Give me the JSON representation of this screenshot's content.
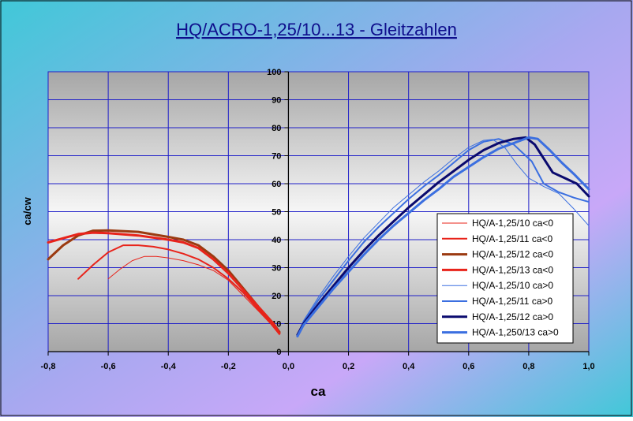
{
  "chart_data": {
    "type": "line",
    "title": "HQ/ACRO-1,25/10...13 - Gleitzahlen",
    "xlabel": "ca",
    "ylabel": "ca/cw",
    "xlim": [
      -0.8,
      1.0
    ],
    "ylim": [
      0,
      100
    ],
    "x_ticks": [
      "-0,8",
      "-0,6",
      "-0,4",
      "-0,2",
      "0,0",
      "0,2",
      "0,4",
      "0,6",
      "0,8",
      "1,0"
    ],
    "y_ticks": [
      "0",
      "10",
      "20",
      "30",
      "40",
      "50",
      "60",
      "70",
      "80",
      "90",
      "100"
    ],
    "grid": true,
    "legend_position": "bottom-right",
    "series": [
      {
        "name": "HQ/A-1,25/10 ca<0",
        "color": "#e8231a",
        "width": 1,
        "points": [
          [
            -0.6,
            26
          ],
          [
            -0.56,
            29.5
          ],
          [
            -0.52,
            32.5
          ],
          [
            -0.48,
            34
          ],
          [
            -0.44,
            34
          ],
          [
            -0.4,
            33.5
          ],
          [
            -0.35,
            32.5
          ],
          [
            -0.3,
            31
          ],
          [
            -0.25,
            29
          ],
          [
            -0.2,
            25.5
          ],
          [
            -0.15,
            20
          ],
          [
            -0.1,
            14.5
          ],
          [
            -0.06,
            10
          ],
          [
            -0.03,
            6
          ]
        ]
      },
      {
        "name": "HQ/A-1,25/11 ca<0",
        "color": "#e8231a",
        "width": 2,
        "points": [
          [
            -0.7,
            26
          ],
          [
            -0.65,
            31
          ],
          [
            -0.6,
            35.5
          ],
          [
            -0.55,
            38
          ],
          [
            -0.5,
            38
          ],
          [
            -0.45,
            37.5
          ],
          [
            -0.4,
            36.5
          ],
          [
            -0.35,
            35
          ],
          [
            -0.3,
            33
          ],
          [
            -0.25,
            30
          ],
          [
            -0.2,
            26
          ],
          [
            -0.15,
            21
          ],
          [
            -0.1,
            15
          ],
          [
            -0.06,
            10.5
          ],
          [
            -0.03,
            6.5
          ]
        ]
      },
      {
        "name": "HQ/A-1,25/12 ca<0",
        "color": "#9b3a10",
        "width": 3,
        "points": [
          [
            -0.8,
            33
          ],
          [
            -0.75,
            38
          ],
          [
            -0.7,
            41.5
          ],
          [
            -0.65,
            43.2
          ],
          [
            -0.6,
            43.3
          ],
          [
            -0.5,
            42.8
          ],
          [
            -0.4,
            41
          ],
          [
            -0.35,
            40
          ],
          [
            -0.3,
            38
          ],
          [
            -0.25,
            34
          ],
          [
            -0.2,
            29
          ],
          [
            -0.15,
            22.5
          ],
          [
            -0.1,
            16
          ],
          [
            -0.05,
            10
          ],
          [
            -0.03,
            7
          ]
        ]
      },
      {
        "name": "HQ/A-1,25/13 ca<0",
        "color": "#e8231a",
        "width": 3,
        "points": [
          [
            -0.8,
            39
          ],
          [
            -0.75,
            40.5
          ],
          [
            -0.7,
            42
          ],
          [
            -0.65,
            42.5
          ],
          [
            -0.6,
            42.3
          ],
          [
            -0.5,
            41.5
          ],
          [
            -0.4,
            40
          ],
          [
            -0.35,
            39
          ],
          [
            -0.3,
            37
          ],
          [
            -0.25,
            33
          ],
          [
            -0.2,
            28
          ],
          [
            -0.15,
            22
          ],
          [
            -0.1,
            16
          ],
          [
            -0.05,
            10
          ],
          [
            -0.03,
            6.5
          ]
        ]
      },
      {
        "name": "HQ/A-1,25/10 ca>0",
        "color": "#3b6fe0",
        "width": 1,
        "points": [
          [
            0.03,
            6
          ],
          [
            0.05,
            11
          ],
          [
            0.1,
            19.5
          ],
          [
            0.15,
            27
          ],
          [
            0.2,
            34
          ],
          [
            0.25,
            40.5
          ],
          [
            0.3,
            46
          ],
          [
            0.35,
            51.5
          ],
          [
            0.4,
            56
          ],
          [
            0.45,
            60.5
          ],
          [
            0.5,
            64.5
          ],
          [
            0.55,
            69
          ],
          [
            0.6,
            73
          ],
          [
            0.65,
            75.5
          ],
          [
            0.68,
            75.8
          ],
          [
            0.72,
            73
          ],
          [
            0.76,
            67
          ],
          [
            0.8,
            62
          ],
          [
            0.85,
            59
          ],
          [
            0.9,
            56.5
          ],
          [
            0.95,
            51
          ],
          [
            1.0,
            45
          ]
        ]
      },
      {
        "name": "HQ/A-1,25/11 ca>0",
        "color": "#3b6fe0",
        "width": 2,
        "points": [
          [
            0.03,
            6
          ],
          [
            0.05,
            10.5
          ],
          [
            0.1,
            18.5
          ],
          [
            0.15,
            25.5
          ],
          [
            0.2,
            32.5
          ],
          [
            0.25,
            39
          ],
          [
            0.3,
            44.5
          ],
          [
            0.35,
            49.5
          ],
          [
            0.4,
            54.5
          ],
          [
            0.45,
            59
          ],
          [
            0.5,
            63
          ],
          [
            0.55,
            67.5
          ],
          [
            0.6,
            72
          ],
          [
            0.65,
            75
          ],
          [
            0.7,
            76
          ],
          [
            0.75,
            74
          ],
          [
            0.78,
            71
          ],
          [
            0.81,
            68
          ],
          [
            0.85,
            60
          ],
          [
            0.9,
            57
          ],
          [
            0.95,
            55
          ],
          [
            1.0,
            53.5
          ]
        ]
      },
      {
        "name": "HQ/A-1,25/12 ca>0",
        "color": "#0a0a6e",
        "width": 3,
        "points": [
          [
            0.03,
            6
          ],
          [
            0.05,
            10
          ],
          [
            0.1,
            17
          ],
          [
            0.15,
            23.5
          ],
          [
            0.2,
            30
          ],
          [
            0.25,
            36
          ],
          [
            0.3,
            41.5
          ],
          [
            0.35,
            46.5
          ],
          [
            0.4,
            51.5
          ],
          [
            0.45,
            56
          ],
          [
            0.5,
            60.5
          ],
          [
            0.55,
            64.5
          ],
          [
            0.6,
            68.5
          ],
          [
            0.65,
            72
          ],
          [
            0.7,
            74.5
          ],
          [
            0.75,
            76
          ],
          [
            0.79,
            76.5
          ],
          [
            0.82,
            74
          ],
          [
            0.85,
            69
          ],
          [
            0.88,
            64
          ],
          [
            0.92,
            62
          ],
          [
            0.96,
            60
          ],
          [
            1.0,
            55.5
          ]
        ]
      },
      {
        "name": "HQ/A-1,250/13 ca>0",
        "color": "#3b6fe0",
        "width": 3,
        "points": [
          [
            0.03,
            5.5
          ],
          [
            0.05,
            9.5
          ],
          [
            0.1,
            16
          ],
          [
            0.15,
            22.5
          ],
          [
            0.2,
            28.5
          ],
          [
            0.25,
            34.5
          ],
          [
            0.3,
            40
          ],
          [
            0.35,
            45
          ],
          [
            0.4,
            49.5
          ],
          [
            0.45,
            54
          ],
          [
            0.5,
            58
          ],
          [
            0.55,
            62.5
          ],
          [
            0.6,
            66
          ],
          [
            0.65,
            69.5
          ],
          [
            0.7,
            72.5
          ],
          [
            0.75,
            74.5
          ],
          [
            0.8,
            76.5
          ],
          [
            0.83,
            76
          ],
          [
            0.87,
            72
          ],
          [
            0.91,
            67.5
          ],
          [
            0.95,
            63.5
          ],
          [
            1.0,
            58
          ]
        ]
      }
    ]
  }
}
